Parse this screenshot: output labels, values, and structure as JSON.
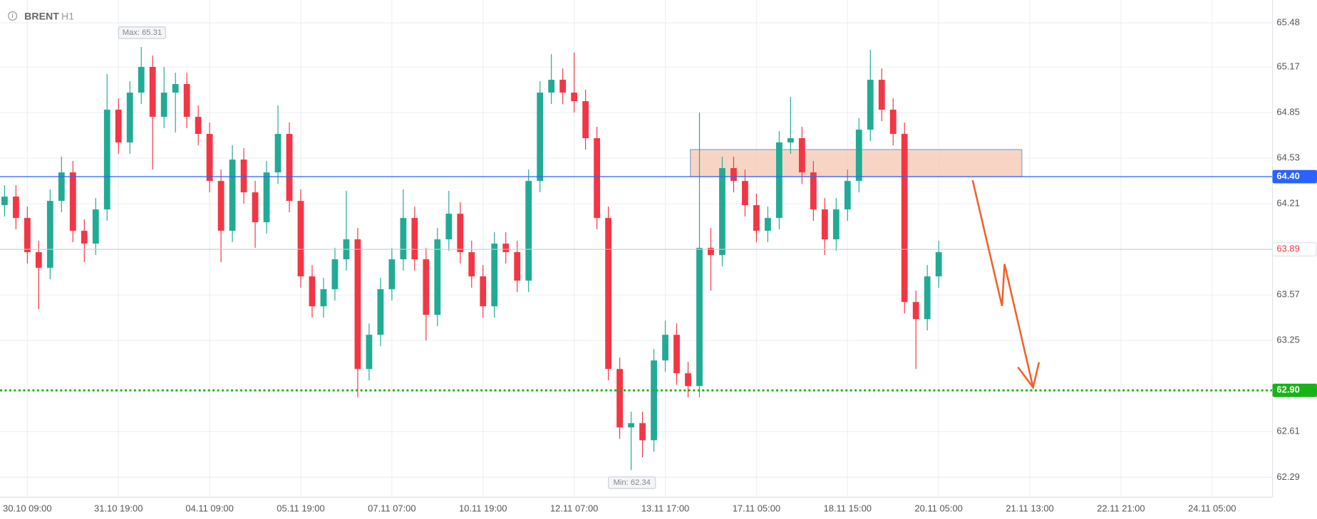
{
  "chart_data": {
    "type": "candlestick",
    "title": "BRENT",
    "timeframe": "H1",
    "up_color": "#22ab94",
    "down_color": "#f23645",
    "grid": true,
    "open": [
      64.2,
      64.26,
      64.11,
      63.87,
      63.76,
      64.23,
      64.43,
      64.02,
      63.93,
      64.17,
      64.87,
      64.64,
      64.99,
      65.17,
      64.82,
      64.99,
      65.05,
      64.82,
      64.7,
      64.37,
      64.02,
      64.52,
      64.29,
      64.08,
      64.43,
      64.7,
      64.23,
      63.7,
      63.49,
      63.61,
      63.82,
      63.96,
      63.05,
      63.29,
      63.61,
      63.82,
      64.11,
      63.82,
      63.43,
      63.96,
      64.14,
      63.87,
      63.7,
      63.49,
      63.93,
      63.87,
      63.67,
      64.37,
      64.99,
      65.08,
      64.99,
      64.93,
      64.67,
      64.11,
      63.05,
      62.64,
      62.67,
      62.55,
      63.11,
      63.29,
      63.02,
      62.93,
      63.9,
      63.85,
      64.46,
      64.37,
      64.2,
      64.02,
      64.11,
      64.64,
      64.67,
      64.43,
      64.17,
      63.96,
      64.17,
      64.37,
      64.73,
      65.08,
      64.87,
      64.7,
      63.52,
      63.4,
      63.7
    ],
    "high": [
      64.34,
      64.34,
      64.19,
      63.95,
      64.31,
      64.54,
      64.51,
      64.1,
      64.25,
      65.12,
      64.95,
      65.07,
      65.31,
      65.25,
      65.17,
      65.13,
      65.13,
      64.9,
      64.78,
      64.45,
      64.62,
      64.6,
      64.37,
      64.51,
      64.9,
      64.78,
      64.31,
      63.78,
      63.69,
      63.9,
      64.3,
      64.04,
      63.37,
      63.69,
      63.9,
      64.31,
      64.19,
      63.9,
      64.04,
      64.3,
      64.22,
      63.95,
      63.78,
      64.01,
      64.01,
      63.95,
      64.45,
      65.07,
      65.26,
      65.16,
      65.27,
      65.01,
      64.75,
      64.19,
      63.13,
      62.75,
      62.75,
      63.19,
      63.39,
      63.37,
      63.1,
      64.85,
      64.04,
      64.54,
      64.54,
      64.45,
      64.28,
      64.19,
      64.72,
      64.96,
      64.75,
      64.51,
      64.25,
      64.25,
      64.45,
      64.81,
      65.29,
      65.16,
      64.95,
      64.78,
      63.6,
      63.78,
      63.95
    ],
    "low": [
      64.12,
      64.03,
      63.79,
      63.47,
      63.68,
      64.15,
      63.94,
      63.8,
      63.85,
      64.09,
      64.56,
      64.56,
      64.91,
      64.45,
      64.74,
      64.71,
      64.74,
      64.62,
      64.29,
      63.8,
      63.94,
      64.21,
      63.9,
      64.0,
      64.35,
      64.15,
      63.62,
      63.41,
      63.41,
      63.53,
      63.74,
      62.85,
      62.97,
      63.21,
      63.53,
      63.74,
      63.74,
      63.25,
      63.35,
      63.88,
      63.79,
      63.62,
      63.41,
      63.41,
      63.79,
      63.59,
      63.59,
      64.29,
      64.91,
      64.91,
      64.85,
      64.59,
      64.03,
      62.97,
      62.56,
      62.34,
      62.43,
      62.47,
      63.03,
      62.94,
      62.85,
      62.85,
      63.6,
      63.77,
      64.29,
      64.12,
      63.94,
      63.94,
      64.03,
      64.56,
      64.35,
      64.09,
      63.85,
      63.88,
      64.09,
      64.29,
      64.65,
      64.79,
      64.62,
      63.44,
      63.05,
      63.32,
      63.62
    ],
    "close": [
      64.26,
      64.11,
      63.87,
      63.76,
      64.23,
      64.43,
      64.02,
      63.93,
      64.17,
      64.87,
      64.64,
      64.99,
      65.17,
      64.82,
      64.99,
      65.05,
      64.82,
      64.7,
      64.37,
      64.02,
      64.52,
      64.29,
      64.08,
      64.43,
      64.7,
      64.23,
      63.7,
      63.49,
      63.61,
      63.82,
      63.96,
      63.05,
      63.29,
      63.61,
      63.82,
      64.11,
      63.82,
      63.43,
      63.96,
      64.14,
      63.87,
      63.7,
      63.49,
      63.93,
      63.87,
      63.67,
      64.37,
      64.99,
      65.08,
      64.99,
      64.93,
      64.67,
      64.11,
      63.05,
      62.64,
      62.67,
      62.55,
      63.11,
      63.29,
      63.02,
      62.93,
      63.9,
      63.85,
      64.46,
      64.37,
      64.2,
      64.02,
      64.11,
      64.64,
      64.67,
      64.43,
      64.17,
      63.96,
      64.17,
      64.37,
      64.73,
      65.08,
      64.87,
      64.7,
      63.52,
      63.4,
      63.7,
      63.87
    ],
    "xlim": [
      -0.4,
      111.3
    ],
    "xticks": [
      {
        "value": 2,
        "label": "30.10 09:00"
      },
      {
        "value": 10,
        "label": "31.10 19:00"
      },
      {
        "value": 18,
        "label": "04.11 09:00"
      },
      {
        "value": 26,
        "label": "05.11 19:00"
      },
      {
        "value": 34,
        "label": "07.11 07:00"
      },
      {
        "value": 42,
        "label": "10.11 19:00"
      },
      {
        "value": 50,
        "label": "12.11 07:00"
      },
      {
        "value": 58,
        "label": "13.11 17:00"
      },
      {
        "value": 66,
        "label": "17.11 05:00"
      },
      {
        "value": 74,
        "label": "18.11 15:00"
      },
      {
        "value": 82,
        "label": "20.11 05:00"
      },
      {
        "value": 90,
        "label": "21.11 13:00"
      },
      {
        "value": 98,
        "label": "22.11 21:00"
      },
      {
        "value": 106,
        "label": "24.11 05:00"
      }
    ],
    "ylim": [
      62.15,
      65.64
    ],
    "yticks": [
      65.48,
      65.17,
      64.85,
      64.53,
      64.21,
      63.57,
      63.25,
      62.61,
      62.29
    ],
    "levels": [
      {
        "value": 64.4,
        "label": "64.40",
        "color": "#2962ff",
        "style": "solid"
      },
      {
        "value": 63.89,
        "label": "63.89",
        "color": "#f23645",
        "style": "faint"
      },
      {
        "value": 62.9,
        "label": "62.90",
        "color": "#19b319",
        "style": "dotted"
      }
    ],
    "zone": {
      "low": 64.4,
      "high": 64.59,
      "start": 60.2,
      "end": 89.3,
      "color": "#f6c9b6"
    },
    "annotations": [
      {
        "label": "Max: 65.31",
        "value": 65.31,
        "x": 12
      },
      {
        "label": "Min: 62.34",
        "value": 62.34,
        "x": 55
      }
    ]
  }
}
